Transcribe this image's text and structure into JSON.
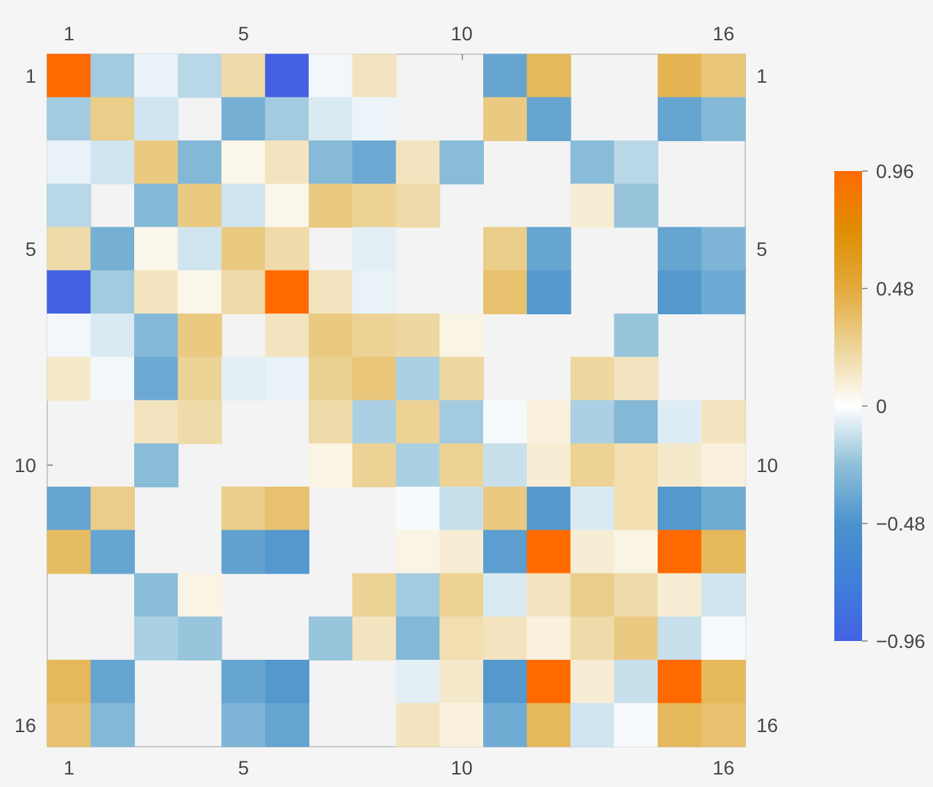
{
  "chart_data": {
    "type": "heatmap",
    "categories": [
      "1",
      null,
      null,
      null,
      "5",
      null,
      null,
      null,
      null,
      "10",
      null,
      null,
      null,
      null,
      null,
      "16"
    ],
    "y_categories": [
      "1",
      null,
      null,
      null,
      "5",
      null,
      null,
      null,
      null,
      "10",
      null,
      null,
      null,
      null,
      null,
      "16"
    ],
    "y2_categories": [
      "1",
      null,
      null,
      null,
      "5",
      null,
      null,
      null,
      null,
      "10",
      null,
      null,
      null,
      null,
      null,
      "16"
    ],
    "cells": [
      [
        0.96,
        -0.2,
        -0.05,
        -0.15,
        0.2,
        -0.96,
        -0.03,
        0.15,
        null,
        null,
        -0.38,
        0.4,
        null,
        null,
        0.42,
        0.32
      ],
      [
        -0.2,
        0.28,
        -0.1,
        null,
        -0.33,
        -0.2,
        -0.08,
        -0.04,
        null,
        null,
        0.3,
        -0.38,
        null,
        null,
        -0.38,
        -0.28
      ],
      [
        -0.05,
        -0.1,
        0.3,
        -0.28,
        0.05,
        0.15,
        -0.27,
        -0.36,
        0.15,
        -0.26,
        null,
        null,
        -0.26,
        -0.15,
        null,
        null
      ],
      [
        -0.15,
        null,
        -0.28,
        0.3,
        -0.1,
        0.05,
        0.3,
        0.25,
        0.2,
        null,
        null,
        null,
        0.1,
        -0.22,
        null,
        null
      ],
      [
        0.2,
        -0.33,
        0.05,
        -0.1,
        0.3,
        0.2,
        null,
        -0.06,
        null,
        null,
        0.28,
        -0.38,
        null,
        null,
        -0.38,
        -0.3
      ],
      [
        -0.96,
        -0.2,
        0.15,
        0.05,
        0.2,
        0.96,
        0.15,
        -0.05,
        null,
        null,
        0.35,
        -0.45,
        null,
        null,
        -0.45,
        -0.36
      ],
      [
        -0.03,
        -0.08,
        -0.28,
        0.3,
        null,
        0.15,
        0.3,
        0.25,
        0.22,
        0.06,
        null,
        null,
        null,
        -0.22,
        null,
        null
      ],
      [
        0.12,
        -0.03,
        -0.36,
        0.25,
        -0.06,
        -0.05,
        0.26,
        0.32,
        -0.18,
        0.22,
        null,
        null,
        0.22,
        0.15,
        null,
        null
      ],
      [
        null,
        null,
        0.15,
        0.2,
        null,
        null,
        0.2,
        -0.18,
        0.25,
        -0.2,
        -0.02,
        0.08,
        -0.18,
        -0.28,
        -0.07,
        0.15
      ],
      [
        null,
        null,
        -0.26,
        null,
        null,
        null,
        0.06,
        0.25,
        -0.18,
        0.25,
        -0.12,
        0.1,
        0.25,
        0.18,
        0.12,
        0.08
      ],
      [
        -0.38,
        0.28,
        null,
        null,
        0.28,
        0.35,
        null,
        null,
        -0.02,
        -0.12,
        0.3,
        -0.45,
        -0.08,
        0.18,
        -0.45,
        -0.35
      ],
      [
        0.38,
        -0.38,
        null,
        null,
        -0.4,
        -0.45,
        null,
        null,
        0.06,
        0.1,
        -0.42,
        0.96,
        0.1,
        0.06,
        0.96,
        0.4
      ],
      [
        null,
        null,
        -0.26,
        0.06,
        null,
        null,
        null,
        0.25,
        -0.2,
        0.25,
        -0.08,
        0.15,
        0.28,
        0.2,
        0.1,
        -0.1
      ],
      [
        null,
        null,
        -0.18,
        -0.22,
        null,
        null,
        -0.22,
        0.15,
        -0.28,
        0.18,
        0.15,
        0.08,
        0.2,
        0.3,
        -0.12,
        -0.02
      ],
      [
        0.4,
        -0.38,
        null,
        null,
        -0.38,
        -0.45,
        null,
        null,
        -0.06,
        0.12,
        -0.45,
        0.96,
        0.1,
        -0.12,
        0.96,
        0.4
      ],
      [
        0.35,
        -0.28,
        null,
        null,
        -0.3,
        -0.38,
        null,
        null,
        0.15,
        0.08,
        -0.35,
        0.4,
        -0.1,
        -0.02,
        0.4,
        0.35
      ]
    ],
    "clim": [
      -0.96,
      0.96
    ],
    "cticks": [
      0.96,
      0.48,
      0,
      {
        "value": -0.48,
        "label": "−0.48"
      },
      {
        "value": -0.96,
        "label": "−0.96"
      }
    ]
  }
}
